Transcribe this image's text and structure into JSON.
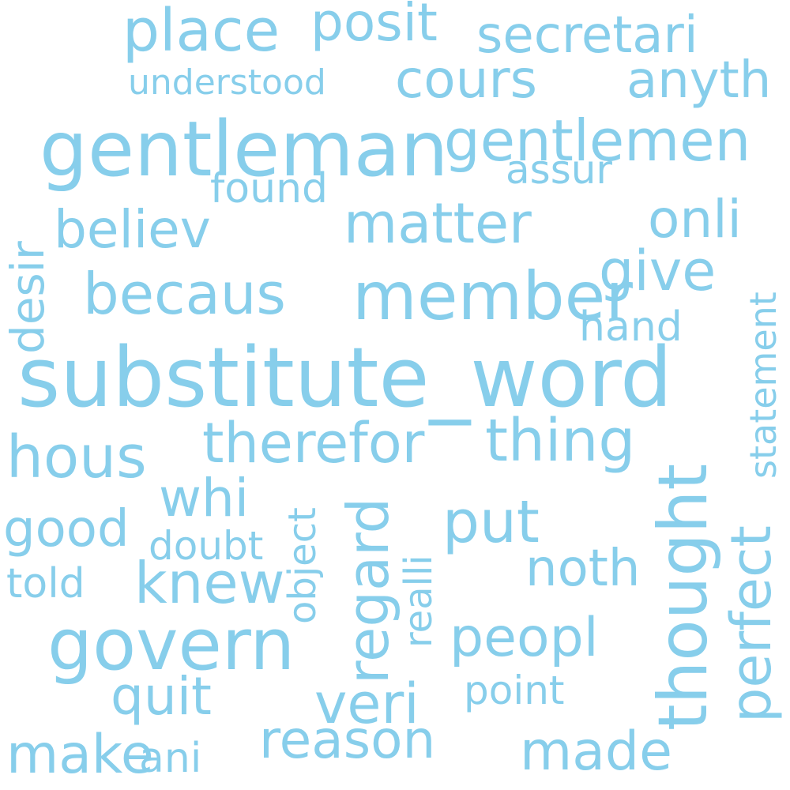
{
  "cloud": {
    "color": "#87ceeb",
    "background": "#ffffff",
    "words": [
      "place",
      "posit",
      "secretari",
      "understood",
      "cours",
      "anyth",
      "gentleman",
      "gentlemen",
      "assur",
      "found",
      "desir",
      "believ",
      "matter",
      "onli",
      "becaus",
      "member",
      "give",
      "hand",
      "statement",
      "substitute_word",
      "hous",
      "therefor",
      "thing",
      "whi",
      "object",
      "regard",
      "realli",
      "put",
      "thought",
      "perfect",
      "good",
      "doubt",
      "told",
      "knew",
      "noth",
      "govern",
      "peopl",
      "quit",
      "veri",
      "point",
      "make",
      "ani",
      "reason",
      "made"
    ]
  }
}
